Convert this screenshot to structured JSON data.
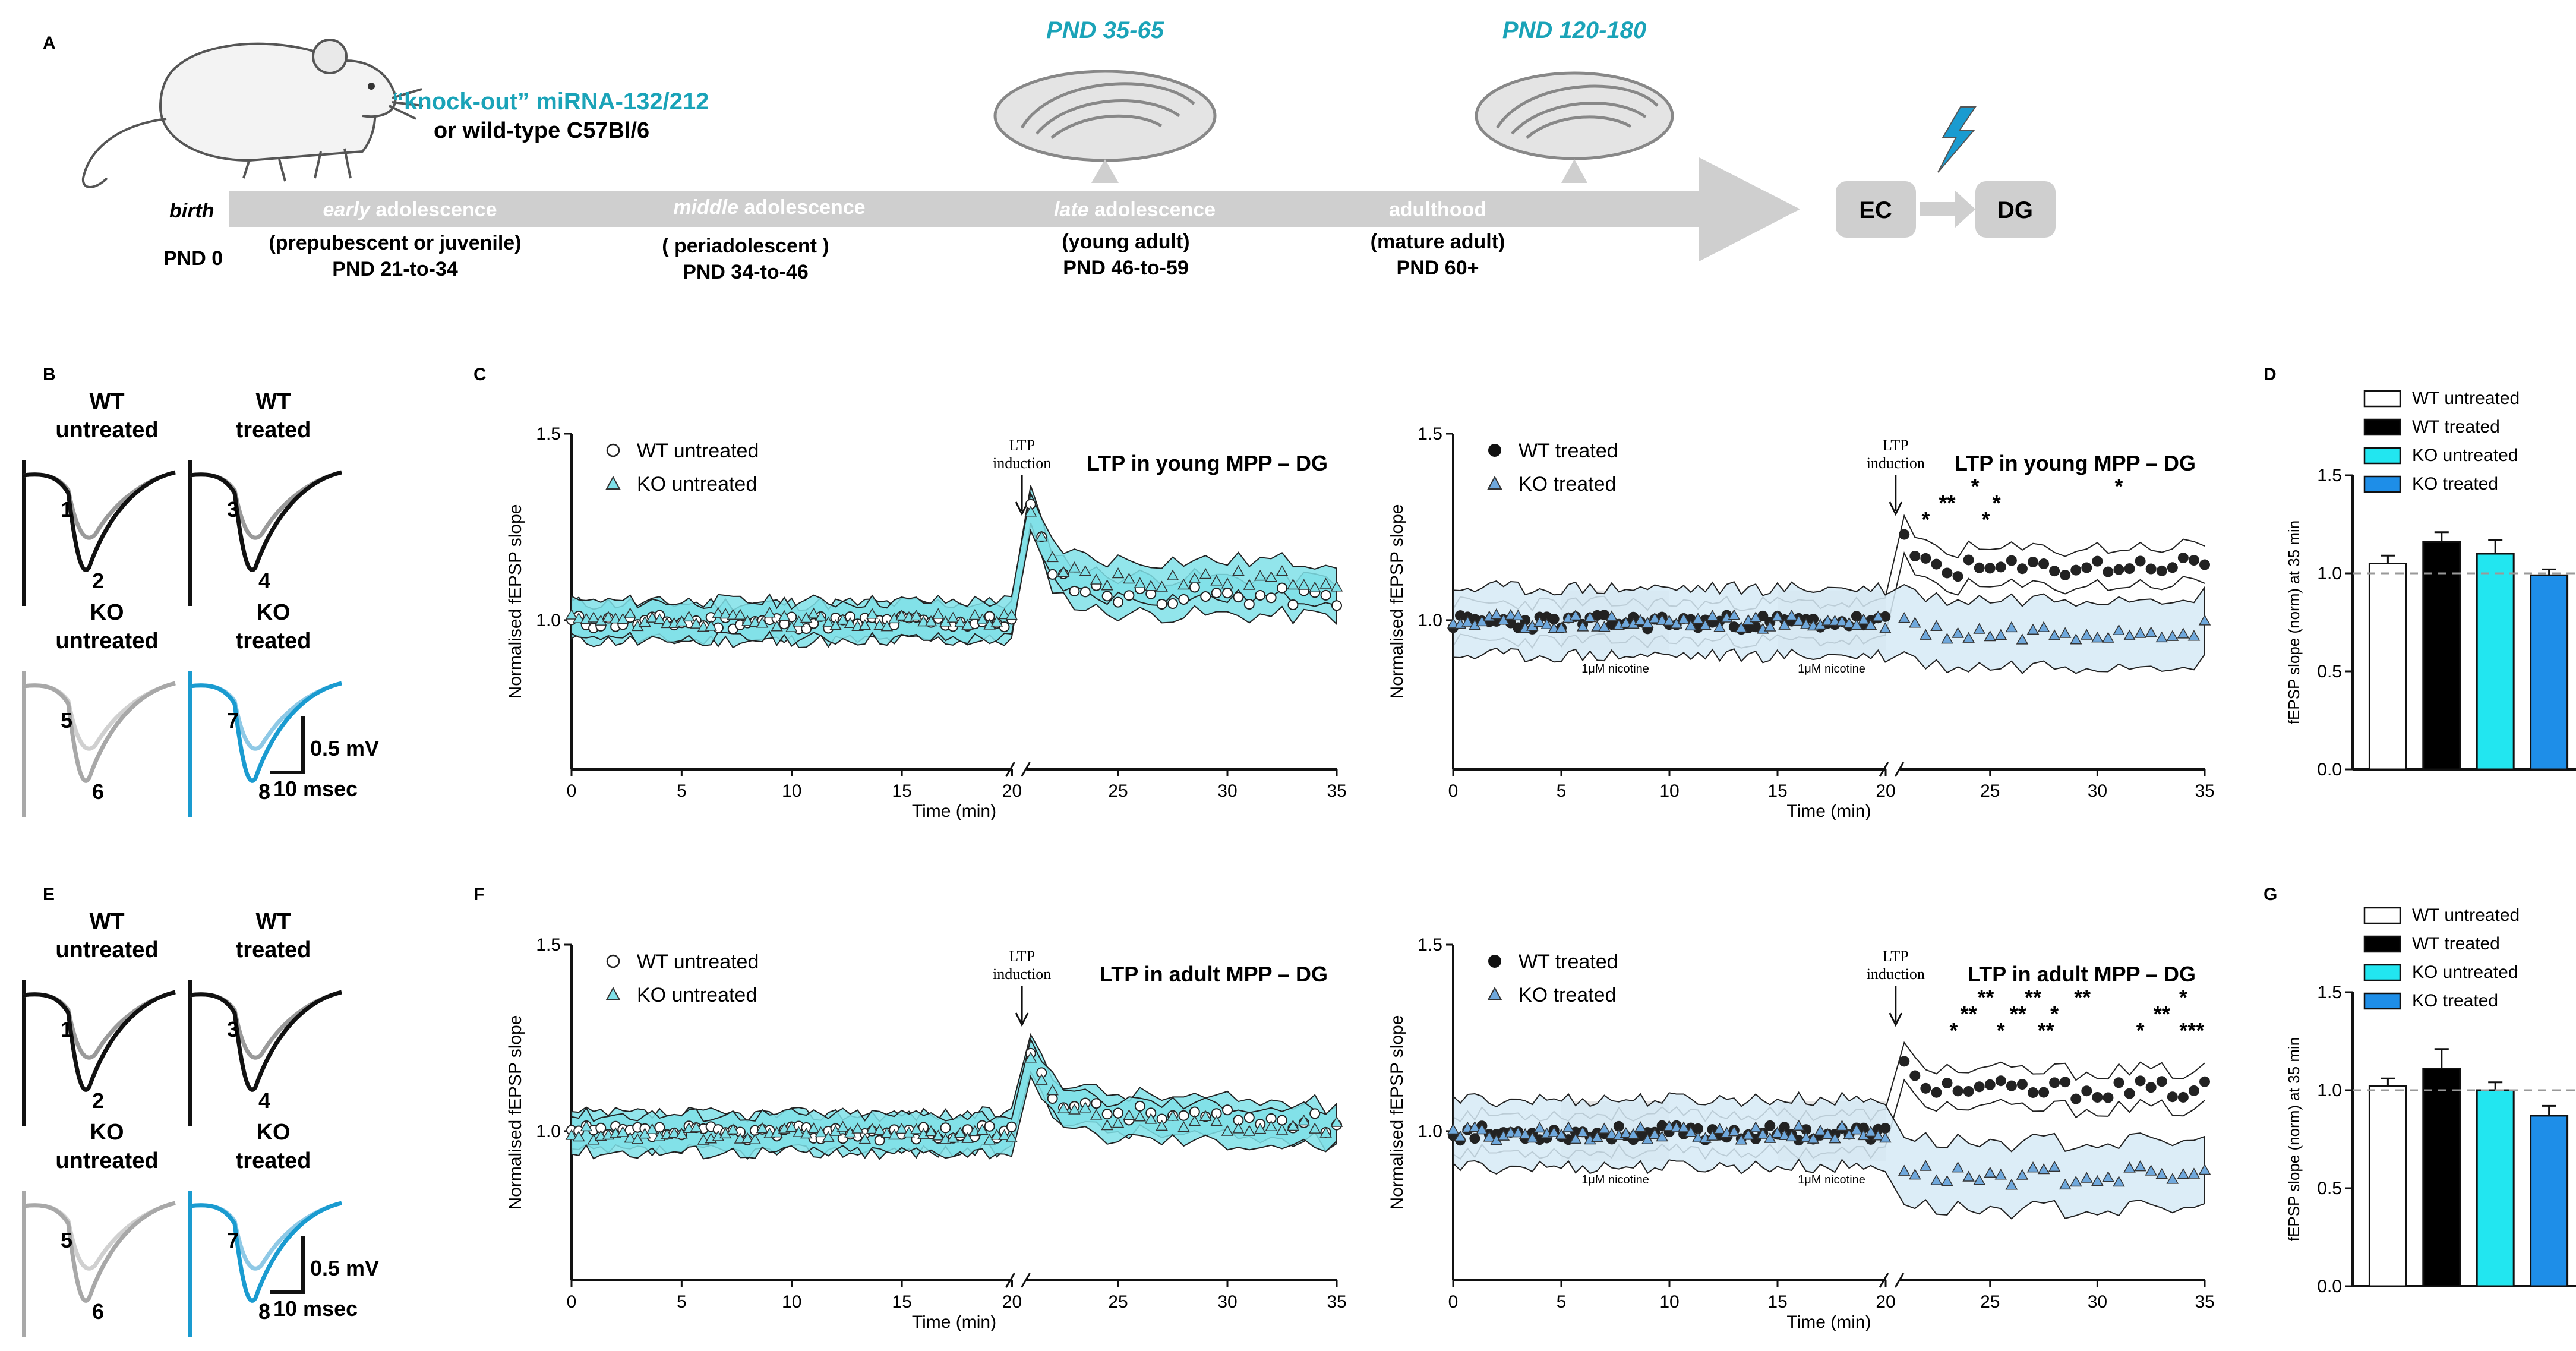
{
  "panel_labels": {
    "a": "A",
    "b": "B",
    "c": "C",
    "d": "D",
    "e": "E",
    "f": "F",
    "g": "G"
  },
  "timeline": {
    "mouse_line1": "“knock-out” miRNA-132/212",
    "mouse_line2": "or wild-type C57Bl/6",
    "birth_label": "birth",
    "birth_pnd": "PND 0",
    "stages": [
      {
        "em": "early",
        "rest": " adolescence",
        "desc": "(prepubescent or juvenile)",
        "pnd": "PND 21-to-34"
      },
      {
        "em": "middle",
        "rest": " adolescence",
        "desc": "( periadolescent )",
        "pnd": "PND 34-to-46"
      },
      {
        "em": "late",
        "rest": " adolescence",
        "desc": "(young adult)",
        "pnd": "PND 46-to-59"
      },
      {
        "em": "",
        "rest": "adulthood",
        "desc": "(mature adult)",
        "pnd": "PND 60+"
      }
    ],
    "slice_young": "PND 35-65",
    "slice_adult": "PND 120-180",
    "box_ec": "EC",
    "box_dg": "DG"
  },
  "traces": {
    "groups": [
      {
        "name_line1": "WT",
        "name_line2": "untreated",
        "num_a": "1",
        "num_b": "2"
      },
      {
        "name_line1": "WT",
        "name_line2": "treated",
        "num_a": "3",
        "num_b": "4"
      },
      {
        "name_line1": "KO",
        "name_line2": "untreated",
        "num_a": "5",
        "num_b": "6"
      },
      {
        "name_line1": "KO",
        "name_line2": "treated",
        "num_a": "7",
        "num_b": "8"
      }
    ],
    "scale_v": "0.5 mV",
    "scale_h": "10 msec",
    "colors": {
      "wt": "#111111",
      "wt_light": "#9a9a9a",
      "ko_untreated": "#a8a8a8",
      "ko_treated": "#1a9bd0",
      "ko_treated_light": "#8fc9e6"
    }
  },
  "chart_data": [
    {
      "id": "C-left",
      "type": "line",
      "title": "LTP in young MPP – DG",
      "xlabel": "Time (min)",
      "ylabel": "Normalised fEPSP slope",
      "xlim": [
        0,
        35
      ],
      "ylim": [
        0.6,
        1.5
      ],
      "yticks": [
        "1.5",
        "1.0"
      ],
      "xticks": [
        "0",
        "5",
        "10",
        "15",
        "20",
        "25",
        "30",
        "35"
      ],
      "annotation": "LTP\ninduction",
      "annotation_line1": "LTP",
      "annotation_line2": "induction",
      "series": [
        {
          "name": "WT untreated",
          "marker": "circle-open",
          "baseline": 0.995,
          "peak": 1.3,
          "plateau": 1.07,
          "end": 1.06
        },
        {
          "name": "KO untreated",
          "marker": "triangle-cyan",
          "baseline": 1.0,
          "peak": 1.28,
          "plateau": 1.11,
          "end": 1.11
        }
      ],
      "band_color": "#7fe0e8"
    },
    {
      "id": "C-right",
      "type": "line",
      "title": "LTP in young MPP – DG",
      "xlabel": "Time (min)",
      "ylabel": "Normalised fEPSP slope",
      "xlim": [
        0,
        35
      ],
      "ylim": [
        0.6,
        1.5
      ],
      "yticks": [
        "1.5",
        "1.0"
      ],
      "xticks": [
        "0",
        "5",
        "10",
        "15",
        "20",
        "25",
        "30",
        "35"
      ],
      "annotation_line1": "LTP",
      "annotation_line2": "induction",
      "nicotine_label": "1μM nicotine",
      "nicotine_windows": [
        [
          5,
          10
        ],
        [
          15,
          20
        ]
      ],
      "series": [
        {
          "name": "WT treated",
          "marker": "circle-filled",
          "baseline": 0.995,
          "peak": 1.21,
          "plateau": 1.13,
          "end": 1.15
        },
        {
          "name": "KO treated",
          "marker": "triangle-blue",
          "baseline": 0.995,
          "peak": 1.0,
          "plateau": 0.96,
          "end": 0.98
        }
      ],
      "significance": [
        {
          "x": 22,
          "label": "*"
        },
        {
          "x": 23,
          "label": "**"
        },
        {
          "x": 24.3,
          "label": "*"
        },
        {
          "x": 24.8,
          "label": "*"
        },
        {
          "x": 25.3,
          "label": "*"
        },
        {
          "x": 31,
          "label": "*"
        }
      ],
      "band_color": "#d6eaf6"
    },
    {
      "id": "F-left",
      "type": "line",
      "title": "LTP in adult MPP – DG",
      "xlabel": "Time (min)",
      "ylabel": "Normalised fEPSP slope",
      "xlim": [
        0,
        35
      ],
      "ylim": [
        0.6,
        1.5
      ],
      "yticks": [
        "1.5",
        "1.0"
      ],
      "xticks": [
        "0",
        "5",
        "10",
        "15",
        "20",
        "25",
        "30",
        "35"
      ],
      "annotation_line1": "LTP",
      "annotation_line2": "induction",
      "series": [
        {
          "name": "WT untreated",
          "marker": "circle-open",
          "baseline": 0.995,
          "peak": 1.22,
          "plateau": 1.06,
          "end": 1.02
        },
        {
          "name": "KO untreated",
          "marker": "triangle-cyan",
          "baseline": 0.995,
          "peak": 1.18,
          "plateau": 1.04,
          "end": 1.01
        }
      ],
      "band_color": "#7fe0e8"
    },
    {
      "id": "F-right",
      "type": "line",
      "title": "LTP in adult MPP – DG",
      "xlabel": "Time (min)",
      "ylabel": "Normalised fEPSP slope",
      "xlim": [
        0,
        35
      ],
      "ylim": [
        0.6,
        1.5
      ],
      "yticks": [
        "1.5",
        "1.0"
      ],
      "xticks": [
        "0",
        "5",
        "10",
        "15",
        "20",
        "25",
        "30",
        "35"
      ],
      "annotation_line1": "LTP",
      "annotation_line2": "induction",
      "nicotine_label": "1μM nicotine",
      "nicotine_windows": [
        [
          5,
          10
        ],
        [
          15,
          20
        ]
      ],
      "series": [
        {
          "name": "WT treated",
          "marker": "circle-filled",
          "baseline": 0.995,
          "peak": 1.17,
          "plateau": 1.11,
          "end": 1.11
        },
        {
          "name": "KO treated",
          "marker": "triangle-blue",
          "baseline": 0.995,
          "peak": 0.9,
          "plateau": 0.88,
          "end": 0.88
        }
      ],
      "significance": [
        {
          "x": 23.3,
          "label": "*"
        },
        {
          "x": 24,
          "label": "**"
        },
        {
          "x": 24.8,
          "label": "**"
        },
        {
          "x": 25.5,
          "label": "*"
        },
        {
          "x": 26.3,
          "label": "**"
        },
        {
          "x": 27,
          "label": "**"
        },
        {
          "x": 27.6,
          "label": "**"
        },
        {
          "x": 28,
          "label": "*"
        },
        {
          "x": 29.3,
          "label": "**"
        },
        {
          "x": 32,
          "label": "*"
        },
        {
          "x": 33,
          "label": "**"
        },
        {
          "x": 34,
          "label": "*"
        },
        {
          "x": 34.4,
          "label": "***"
        }
      ],
      "band_color": "#d6eaf6"
    },
    {
      "id": "D",
      "type": "bar",
      "ylabel": "fEPSP slope (norm) at 35 min",
      "ylim": [
        0,
        1.5
      ],
      "yticks": [
        "0.0",
        "0.5",
        "1.0",
        "1.5"
      ],
      "reference_line": 1.0,
      "categories": [
        "WT untreated",
        "WT treated",
        "KO untreated",
        "KO treated"
      ],
      "values": [
        1.05,
        1.16,
        1.1,
        0.99
      ],
      "errors": [
        0.04,
        0.05,
        0.07,
        0.03
      ],
      "colors": [
        "#ffffff",
        "#000000",
        "#22e6f0",
        "#1e8ee8"
      ]
    },
    {
      "id": "G",
      "type": "bar",
      "ylabel": "fEPSP slope (norm) at 35 min",
      "ylim": [
        0,
        1.5
      ],
      "yticks": [
        "0.0",
        "0.5",
        "1.0",
        "1.5"
      ],
      "reference_line": 1.0,
      "categories": [
        "WT untreated",
        "WT treated",
        "KO untreated",
        "KO treated"
      ],
      "values": [
        1.02,
        1.11,
        1.0,
        0.87
      ],
      "errors": [
        0.04,
        0.1,
        0.04,
        0.05
      ],
      "colors": [
        "#ffffff",
        "#000000",
        "#22e6f0",
        "#1e8ee8"
      ]
    }
  ]
}
